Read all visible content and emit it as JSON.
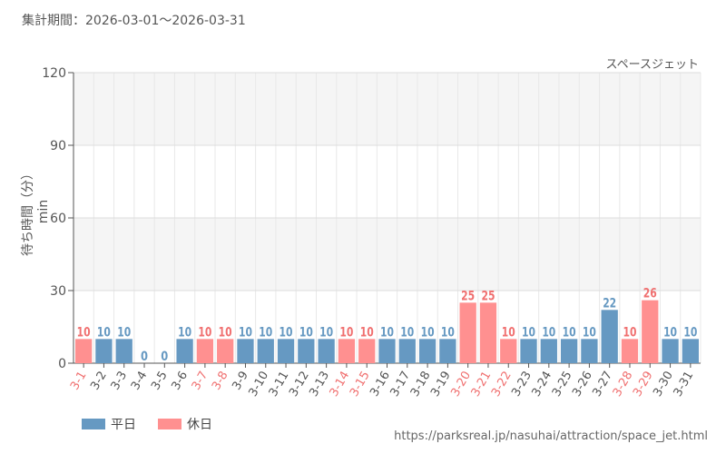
{
  "header": {
    "period_label": "集計期間：",
    "period_range": "2026-03-01～2026-03-31"
  },
  "footer": {
    "source_url": "https://parksreal.jp/nasuhai/attraction/space_jet.html"
  },
  "chart_data": {
    "type": "bar",
    "title": "スペースジェット",
    "ylabel": "待ち時間（分）min",
    "ylim": [
      0,
      120
    ],
    "yticks": [
      "0",
      "30",
      "60",
      "90",
      "120"
    ],
    "grid": true,
    "legend_position": "bottom-left",
    "legend": [
      {
        "name": "平日",
        "color": "#6699c2"
      },
      {
        "name": "休日",
        "color": "#ff9090"
      }
    ],
    "colors": {
      "weekday": "#6699c2",
      "holiday": "#ff9090",
      "holiday_label": "#f07070"
    },
    "categories": [
      "3-1",
      "3-2",
      "3-3",
      "3-4",
      "3-5",
      "3-6",
      "3-7",
      "3-8",
      "3-9",
      "3-10",
      "3-11",
      "3-12",
      "3-13",
      "3-14",
      "3-15",
      "3-16",
      "3-17",
      "3-18",
      "3-19",
      "3-20",
      "3-21",
      "3-22",
      "3-23",
      "3-24",
      "3-25",
      "3-26",
      "3-27",
      "3-28",
      "3-29",
      "3-30",
      "3-31"
    ],
    "values": [
      10,
      10,
      10,
      0,
      0,
      10,
      10,
      10,
      10,
      10,
      10,
      10,
      10,
      10,
      10,
      10,
      10,
      10,
      10,
      25,
      25,
      10,
      10,
      10,
      10,
      10,
      22,
      10,
      26,
      10,
      10
    ],
    "day_type": [
      "holiday",
      "weekday",
      "weekday",
      "weekday",
      "weekday",
      "weekday",
      "holiday",
      "holiday",
      "weekday",
      "weekday",
      "weekday",
      "weekday",
      "weekday",
      "holiday",
      "holiday",
      "weekday",
      "weekday",
      "weekday",
      "weekday",
      "holiday",
      "holiday",
      "holiday",
      "weekday",
      "weekday",
      "weekday",
      "weekday",
      "weekday",
      "holiday",
      "holiday",
      "weekday",
      "weekday"
    ]
  }
}
